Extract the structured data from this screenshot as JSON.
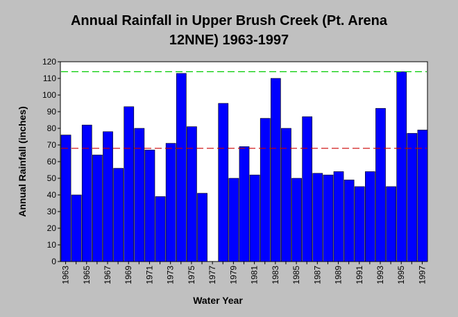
{
  "chart_data": {
    "type": "bar",
    "title_line1": "Annual Rainfall in Upper Brush Creek (Pt. Arena",
    "title_line2": "12NNE) 1963-1997",
    "xlabel": "Water Year",
    "ylabel": "Annual Rainfall (inches)",
    "ylim": [
      0,
      120
    ],
    "yticks": [
      0,
      10,
      20,
      30,
      40,
      50,
      60,
      70,
      80,
      90,
      100,
      110,
      120
    ],
    "categories": [
      "1963",
      "1964",
      "1965",
      "1966",
      "1967",
      "1968",
      "1969",
      "1970",
      "1971",
      "1972",
      "1973",
      "1974",
      "1975",
      "1976",
      "1977",
      "1978",
      "1979",
      "1980",
      "1981",
      "1982",
      "1983",
      "1984",
      "1985",
      "1986",
      "1987",
      "1988",
      "1989",
      "1990",
      "1991",
      "1992",
      "1993",
      "1994",
      "1995",
      "1996",
      "1997"
    ],
    "xtick_labels": [
      "1963",
      "1965",
      "1967",
      "1969",
      "1971",
      "1973",
      "1975",
      "1977",
      "1979",
      "1981",
      "1983",
      "1985",
      "1987",
      "1989",
      "1991",
      "1993",
      "1995",
      "1997"
    ],
    "values": [
      76,
      40,
      82,
      64,
      78,
      56,
      93,
      80,
      67,
      39,
      71,
      113,
      81,
      41,
      null,
      95,
      50,
      69,
      52,
      86,
      110,
      80,
      50,
      87,
      53,
      52,
      54,
      49,
      45,
      54,
      92,
      45,
      114,
      77,
      79
    ],
    "reference_lines": [
      {
        "value": 114,
        "color": "#00cc00",
        "style": "dashed"
      },
      {
        "value": 68,
        "color": "#cc0000",
        "style": "dashed"
      }
    ],
    "bar_color": "#0000ff",
    "plot_background": "#ffffff",
    "grid": false,
    "legend": "none"
  }
}
